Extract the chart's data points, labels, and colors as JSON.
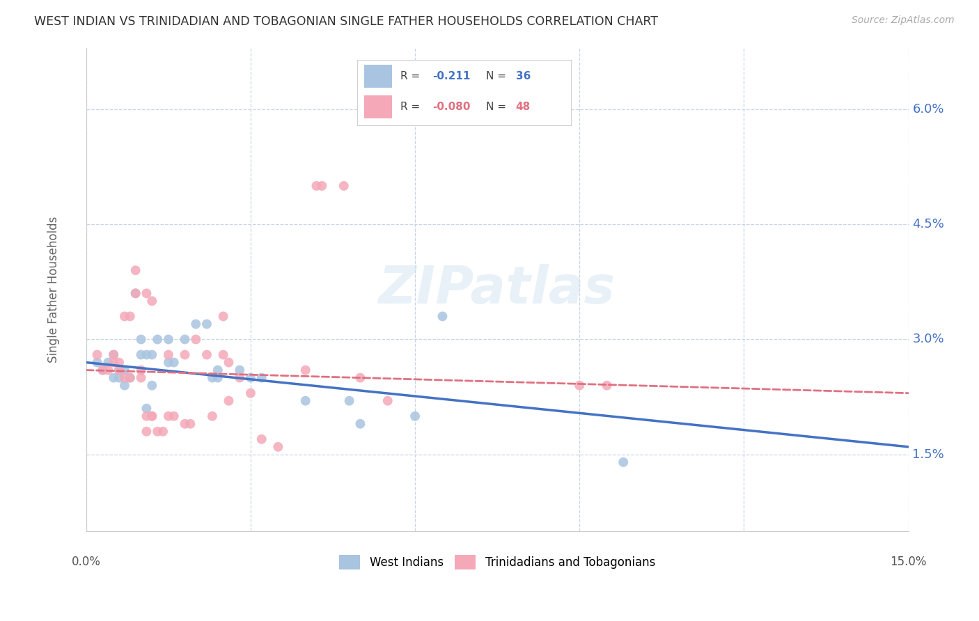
{
  "title": "WEST INDIAN VS TRINIDADIAN AND TOBAGONIAN SINGLE FATHER HOUSEHOLDS CORRELATION CHART",
  "source": "Source: ZipAtlas.com",
  "ylabel": "Single Father Households",
  "ytick_labels": [
    "1.5%",
    "3.0%",
    "4.5%",
    "6.0%"
  ],
  "ytick_values": [
    0.015,
    0.03,
    0.045,
    0.06
  ],
  "xlim": [
    0.0,
    0.15
  ],
  "ylim": [
    0.005,
    0.068
  ],
  "legend_label1": "West Indians",
  "legend_label2": "Trinidadians and Tobagonians",
  "watermark": "ZIPatlas",
  "blue_scatter": [
    [
      0.002,
      0.027
    ],
    [
      0.003,
      0.026
    ],
    [
      0.004,
      0.027
    ],
    [
      0.005,
      0.028
    ],
    [
      0.005,
      0.025
    ],
    [
      0.006,
      0.025
    ],
    [
      0.006,
      0.026
    ],
    [
      0.007,
      0.026
    ],
    [
      0.007,
      0.024
    ],
    [
      0.008,
      0.025
    ],
    [
      0.009,
      0.036
    ],
    [
      0.01,
      0.03
    ],
    [
      0.01,
      0.028
    ],
    [
      0.011,
      0.028
    ],
    [
      0.011,
      0.021
    ],
    [
      0.012,
      0.028
    ],
    [
      0.012,
      0.024
    ],
    [
      0.013,
      0.03
    ],
    [
      0.015,
      0.03
    ],
    [
      0.015,
      0.027
    ],
    [
      0.016,
      0.027
    ],
    [
      0.018,
      0.03
    ],
    [
      0.02,
      0.032
    ],
    [
      0.022,
      0.032
    ],
    [
      0.023,
      0.025
    ],
    [
      0.024,
      0.026
    ],
    [
      0.024,
      0.025
    ],
    [
      0.028,
      0.026
    ],
    [
      0.03,
      0.025
    ],
    [
      0.032,
      0.025
    ],
    [
      0.04,
      0.022
    ],
    [
      0.048,
      0.022
    ],
    [
      0.05,
      0.019
    ],
    [
      0.06,
      0.02
    ],
    [
      0.065,
      0.033
    ],
    [
      0.098,
      0.014
    ]
  ],
  "pink_scatter": [
    [
      0.002,
      0.028
    ],
    [
      0.003,
      0.026
    ],
    [
      0.004,
      0.026
    ],
    [
      0.005,
      0.028
    ],
    [
      0.005,
      0.027
    ],
    [
      0.006,
      0.027
    ],
    [
      0.006,
      0.026
    ],
    [
      0.007,
      0.025
    ],
    [
      0.007,
      0.033
    ],
    [
      0.008,
      0.033
    ],
    [
      0.008,
      0.025
    ],
    [
      0.009,
      0.039
    ],
    [
      0.009,
      0.036
    ],
    [
      0.01,
      0.026
    ],
    [
      0.01,
      0.025
    ],
    [
      0.011,
      0.036
    ],
    [
      0.011,
      0.02
    ],
    [
      0.011,
      0.018
    ],
    [
      0.012,
      0.035
    ],
    [
      0.012,
      0.02
    ],
    [
      0.012,
      0.02
    ],
    [
      0.013,
      0.018
    ],
    [
      0.014,
      0.018
    ],
    [
      0.015,
      0.028
    ],
    [
      0.015,
      0.02
    ],
    [
      0.016,
      0.02
    ],
    [
      0.018,
      0.028
    ],
    [
      0.018,
      0.019
    ],
    [
      0.019,
      0.019
    ],
    [
      0.02,
      0.03
    ],
    [
      0.022,
      0.028
    ],
    [
      0.023,
      0.02
    ],
    [
      0.025,
      0.033
    ],
    [
      0.025,
      0.028
    ],
    [
      0.026,
      0.027
    ],
    [
      0.026,
      0.022
    ],
    [
      0.028,
      0.025
    ],
    [
      0.03,
      0.023
    ],
    [
      0.032,
      0.017
    ],
    [
      0.035,
      0.016
    ],
    [
      0.04,
      0.026
    ],
    [
      0.042,
      0.05
    ],
    [
      0.043,
      0.05
    ],
    [
      0.047,
      0.05
    ],
    [
      0.05,
      0.025
    ],
    [
      0.055,
      0.022
    ],
    [
      0.09,
      0.024
    ],
    [
      0.095,
      0.024
    ]
  ],
  "blue_line_color": "#4472c4",
  "pink_line_color": "#e07080",
  "grid_color": "#c8d4e8",
  "background_color": "#ffffff",
  "scatter_blue": "#a8c4e0",
  "scatter_pink": "#f4a8b8",
  "blue_R": "-0.211",
  "blue_N": "36",
  "pink_R": "-0.080",
  "pink_N": "48"
}
